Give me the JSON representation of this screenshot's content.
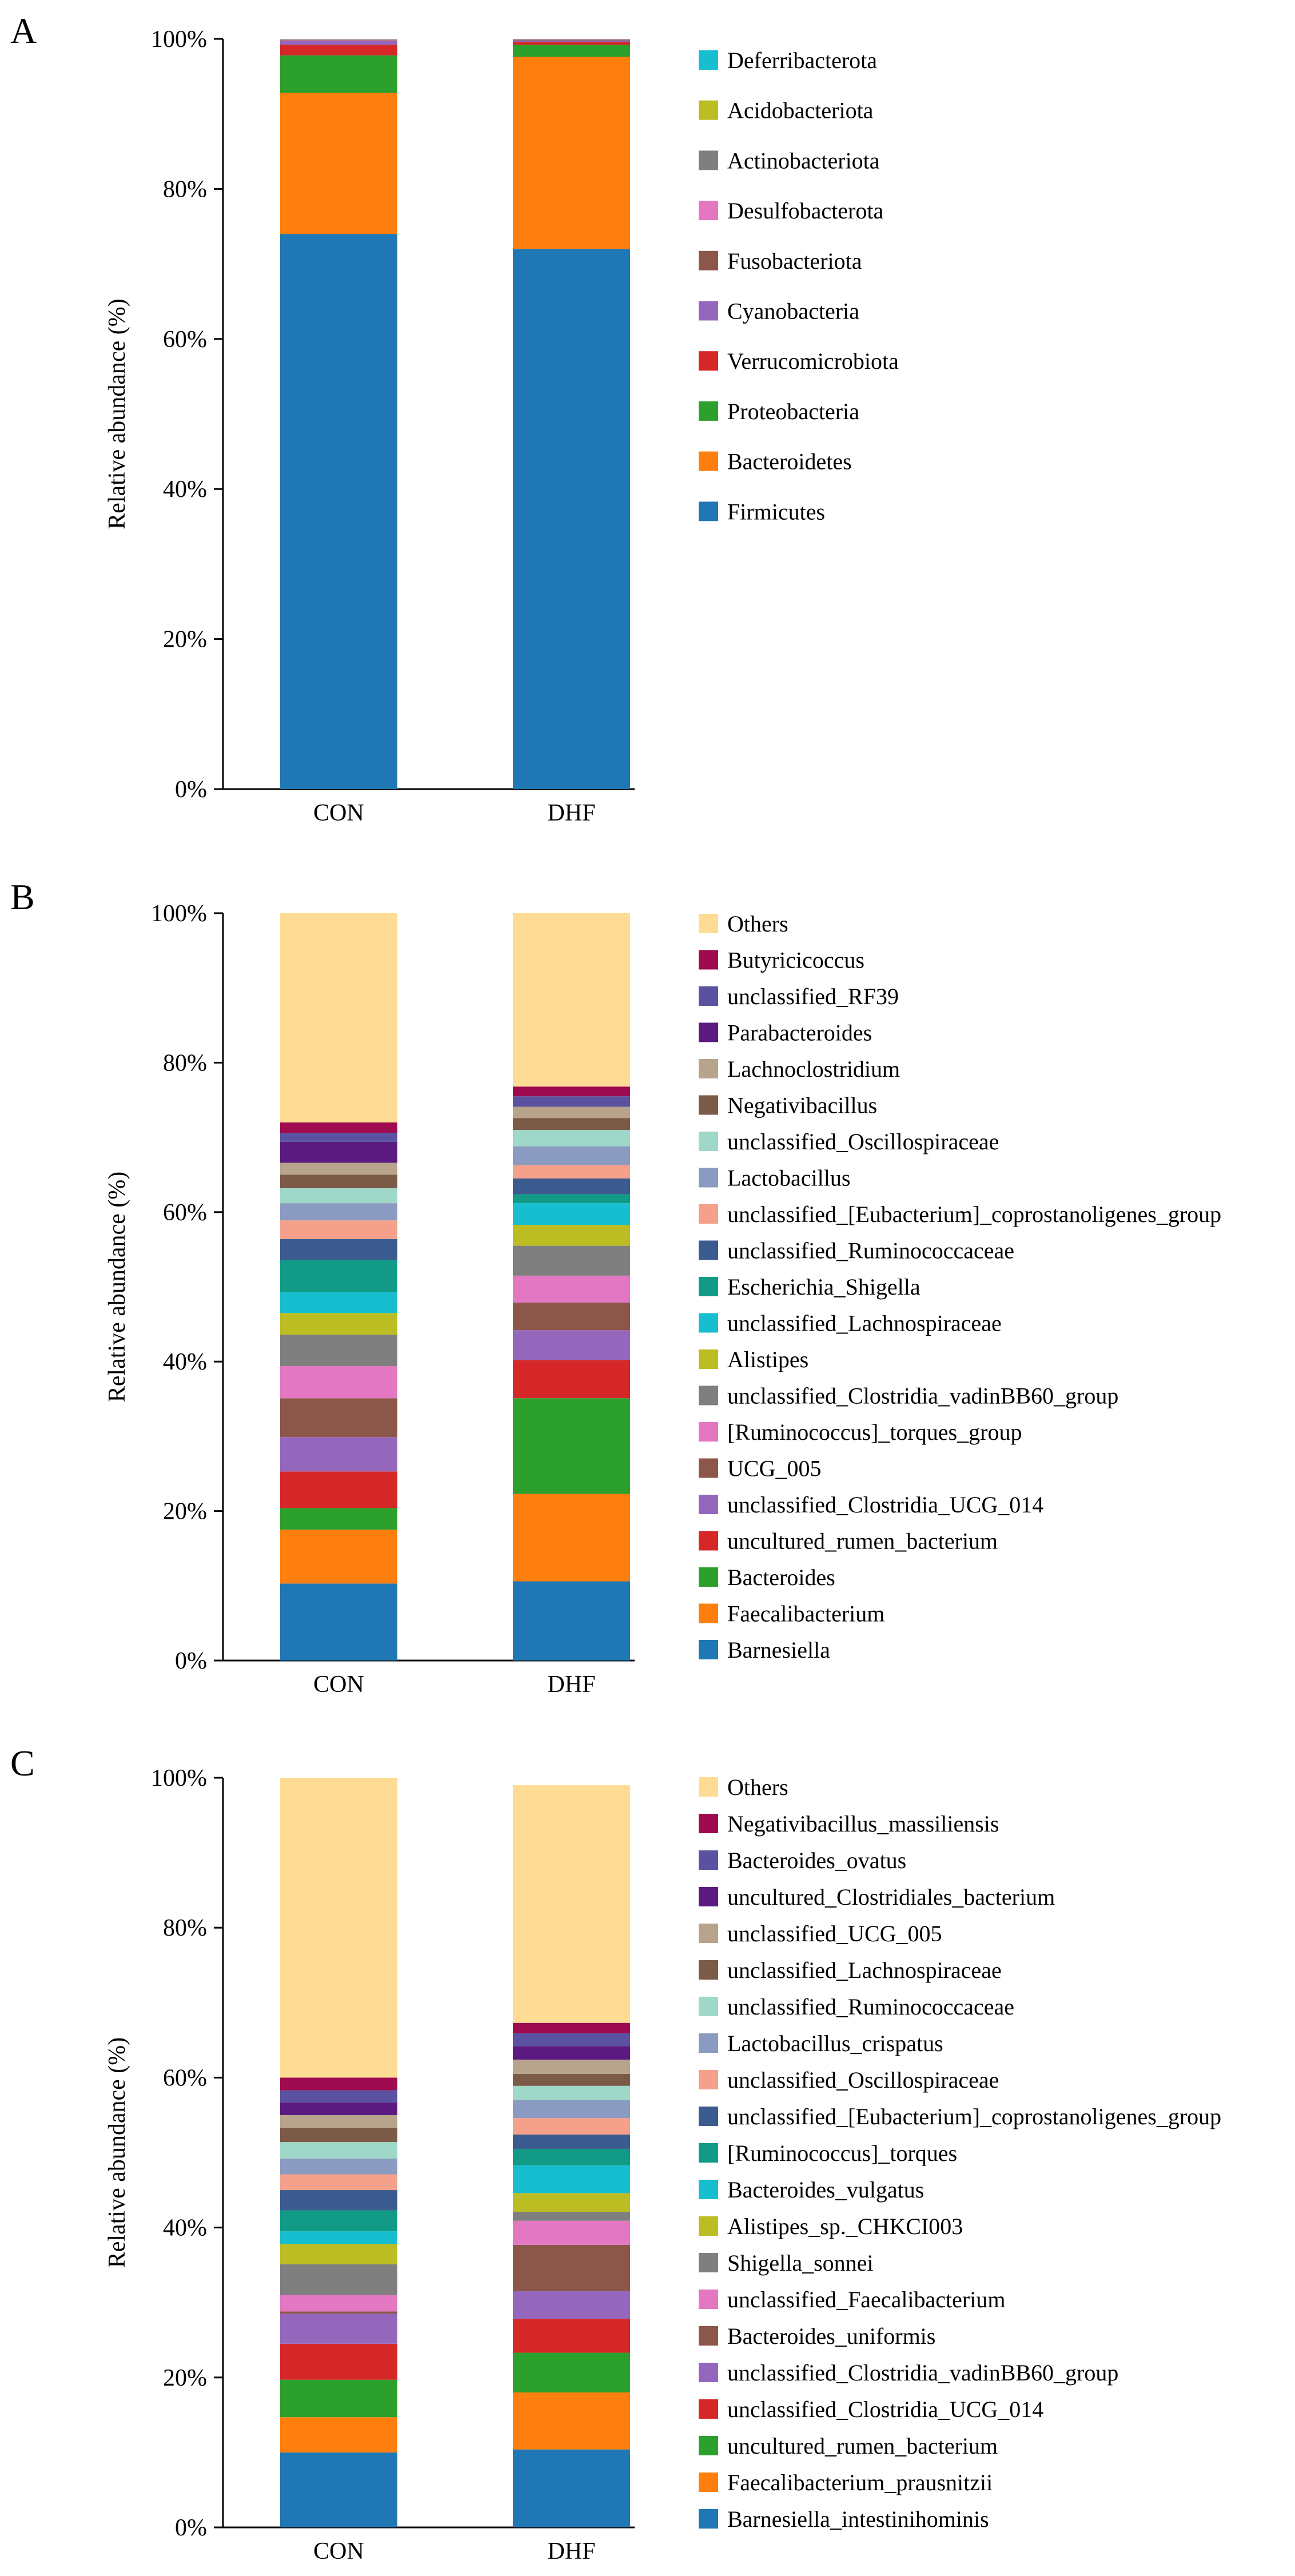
{
  "figure": {
    "background": "#ffffff"
  },
  "colors": {
    "blue": "#1f77b4",
    "orange": "#ff7f0e",
    "green": "#2ca02c",
    "red": "#d62728",
    "purple": "#9467bd",
    "brown": "#8c564b",
    "pink": "#e377c2",
    "gray": "#7f7f7f",
    "olive": "#bcbd22",
    "cyan": "#17becf",
    "teal": "#119a85",
    "navy": "#3b5b8f",
    "salmon": "#f4a08a",
    "steel": "#8a9ac0",
    "mint": "#9fd8c8",
    "darkbrown": "#7b5b47",
    "tan": "#b8a38c",
    "indigo": "#5b1a7f",
    "slate": "#5a52a0",
    "crimson": "#9e0b4f",
    "others": "#fedc94"
  },
  "chart_data": [
    {
      "panel": "A",
      "type": "bar",
      "stacked": true,
      "ylabel": "Relative abundance (%)",
      "ylim": [
        0,
        100
      ],
      "yticks": [
        "0%",
        "20%",
        "40%",
        "60%",
        "80%",
        "100%"
      ],
      "categories": [
        "CON",
        "DHF"
      ],
      "legend_position": "right",
      "series": [
        {
          "name": "Firmicutes",
          "color": "#1f77b4",
          "values": [
            74.0,
            72.0
          ]
        },
        {
          "name": "Bacteroidetes",
          "color": "#ff7f0e",
          "values": [
            18.8,
            25.6
          ]
        },
        {
          "name": "Proteobacteria",
          "color": "#2ca02c",
          "values": [
            5.0,
            1.6
          ]
        },
        {
          "name": "Verrucomicrobiota",
          "color": "#d62728",
          "values": [
            1.4,
            0.4
          ]
        },
        {
          "name": "Cyanobacteria",
          "color": "#9467bd",
          "values": [
            0.5,
            0.2
          ]
        },
        {
          "name": "Fusobacteriota",
          "color": "#8c564b",
          "values": [
            0.1,
            0.1
          ]
        },
        {
          "name": "Desulfobacterota",
          "color": "#e377c2",
          "values": [
            0.1,
            0.05
          ]
        },
        {
          "name": "Actinobacteriota",
          "color": "#7f7f7f",
          "values": [
            0.05,
            0.03
          ]
        },
        {
          "name": "Acidobacteriota",
          "color": "#bcbd22",
          "values": [
            0.03,
            0.01
          ]
        },
        {
          "name": "Deferribacterota",
          "color": "#17becf",
          "values": [
            0.02,
            0.01
          ]
        }
      ]
    },
    {
      "panel": "B",
      "type": "bar",
      "stacked": true,
      "ylabel": "Relative abundance (%)",
      "ylim": [
        0,
        100
      ],
      "yticks": [
        "0%",
        "20%",
        "40%",
        "60%",
        "80%",
        "100%"
      ],
      "categories": [
        "CON",
        "DHF"
      ],
      "legend_position": "right",
      "series": [
        {
          "name": "Barnesiella",
          "color": "#1f77b4",
          "values": [
            10.3,
            10.6
          ]
        },
        {
          "name": "Faecalibacterium",
          "color": "#ff7f0e",
          "values": [
            7.2,
            11.7
          ]
        },
        {
          "name": "Bacteroides",
          "color": "#2ca02c",
          "values": [
            2.9,
            12.8
          ]
        },
        {
          "name": "uncultured_rumen_bacterium",
          "color": "#d62728",
          "values": [
            4.9,
            5.1
          ]
        },
        {
          "name": "unclassified_Clostridia_UCG_014",
          "color": "#9467bd",
          "values": [
            4.6,
            4.0
          ]
        },
        {
          "name": "UCG_005",
          "color": "#8c564b",
          "values": [
            5.2,
            3.7
          ]
        },
        {
          "name": "[Ruminococcus]_torques_group",
          "color": "#e377c2",
          "values": [
            4.3,
            3.6
          ]
        },
        {
          "name": "unclassified_Clostridia_vadinBB60_group",
          "color": "#7f7f7f",
          "values": [
            4.2,
            4.0
          ]
        },
        {
          "name": "Alistipes",
          "color": "#bcbd22",
          "values": [
            2.9,
            2.8
          ]
        },
        {
          "name": "unclassified_Lachnospiraceae",
          "color": "#17becf",
          "values": [
            2.8,
            2.9
          ]
        },
        {
          "name": "Escherichia_Shigella",
          "color": "#119a85",
          "values": [
            4.3,
            1.2
          ]
        },
        {
          "name": "unclassified_Ruminococcaceae",
          "color": "#3b5b8f",
          "values": [
            2.8,
            2.1
          ]
        },
        {
          "name": "unclassified_[Eubacterium]_coprostanoligenes_group",
          "color": "#f4a08a",
          "values": [
            2.5,
            1.8
          ]
        },
        {
          "name": "Lactobacillus",
          "color": "#8a9ac0",
          "values": [
            2.3,
            2.5
          ]
        },
        {
          "name": "unclassified_Oscillospiraceae",
          "color": "#9fd8c8",
          "values": [
            2.0,
            2.2
          ]
        },
        {
          "name": "Negativibacillus",
          "color": "#7b5b47",
          "values": [
            1.8,
            1.6
          ]
        },
        {
          "name": "Lachnoclostridium",
          "color": "#b8a38c",
          "values": [
            1.6,
            1.5
          ]
        },
        {
          "name": "Parabacteroides",
          "color": "#5b1a7f",
          "values": [
            2.8,
            0.0
          ]
        },
        {
          "name": "unclassified_RF39",
          "color": "#5a52a0",
          "values": [
            1.2,
            1.4
          ]
        },
        {
          "name": "Butyricicoccus",
          "color": "#9e0b4f",
          "values": [
            1.4,
            1.3
          ]
        },
        {
          "name": "Others",
          "color": "#fedc94",
          "values": [
            28.0,
            23.2
          ]
        }
      ]
    },
    {
      "panel": "C",
      "type": "bar",
      "stacked": true,
      "ylabel": "Relative abundance (%)",
      "ylim": [
        0,
        100
      ],
      "yticks": [
        "0%",
        "20%",
        "40%",
        "60%",
        "80%",
        "100%"
      ],
      "categories": [
        "CON",
        "DHF"
      ],
      "legend_position": "right",
      "series": [
        {
          "name": "Barnesiella_intestinihominis",
          "color": "#1f77b4",
          "values": [
            10.0,
            10.4
          ]
        },
        {
          "name": "Faecalibacterium_prausnitzii",
          "color": "#ff7f0e",
          "values": [
            4.7,
            7.6
          ]
        },
        {
          "name": "uncultured_rumen_bacterium",
          "color": "#2ca02c",
          "values": [
            5.0,
            5.3
          ]
        },
        {
          "name": "unclassified_Clostridia_UCG_014",
          "color": "#d62728",
          "values": [
            4.8,
            4.5
          ]
        },
        {
          "name": "unclassified_Clostridia_vadinBB60_group",
          "color": "#9467bd",
          "values": [
            4.0,
            3.7
          ]
        },
        {
          "name": "Bacteroides_uniformis",
          "color": "#8c564b",
          "values": [
            0.3,
            6.2
          ]
        },
        {
          "name": "unclassified_Faecalibacterium",
          "color": "#e377c2",
          "values": [
            2.2,
            3.2
          ]
        },
        {
          "name": "Shigella_sonnei",
          "color": "#7f7f7f",
          "values": [
            4.1,
            1.2
          ]
        },
        {
          "name": "Alistipes_sp._CHKCI003",
          "color": "#bcbd22",
          "values": [
            2.7,
            2.5
          ]
        },
        {
          "name": "Bacteroides_vulgatus",
          "color": "#17becf",
          "values": [
            1.7,
            3.7
          ]
        },
        {
          "name": "[Ruminococcus]_torques",
          "color": "#119a85",
          "values": [
            2.8,
            2.2
          ]
        },
        {
          "name": "unclassified_[Eubacterium]_coprostanoligenes_group",
          "color": "#3b5b8f",
          "values": [
            2.7,
            1.9
          ]
        },
        {
          "name": "unclassified_Oscillospiraceae",
          "color": "#f4a08a",
          "values": [
            2.1,
            2.2
          ]
        },
        {
          "name": "Lactobacillus_crispatus",
          "color": "#8a9ac0",
          "values": [
            2.1,
            2.4
          ]
        },
        {
          "name": "unclassified_Ruminococcaceae",
          "color": "#9fd8c8",
          "values": [
            2.2,
            1.9
          ]
        },
        {
          "name": "unclassified_Lachnospiraceae",
          "color": "#7b5b47",
          "values": [
            1.9,
            1.6
          ]
        },
        {
          "name": "unclassified_UCG_005",
          "color": "#b8a38c",
          "values": [
            1.7,
            1.9
          ]
        },
        {
          "name": "uncultured_Clostridiales_bacterium",
          "color": "#5b1a7f",
          "values": [
            1.7,
            1.8
          ]
        },
        {
          "name": "Bacteroides_ovatus",
          "color": "#5a52a0",
          "values": [
            1.6,
            1.7
          ]
        },
        {
          "name": "Negativibacillus_massiliensis",
          "color": "#9e0b4f",
          "values": [
            1.7,
            1.4
          ]
        },
        {
          "name": "Others",
          "color": "#fedc94",
          "values": [
            40.0,
            31.7
          ]
        }
      ]
    }
  ]
}
